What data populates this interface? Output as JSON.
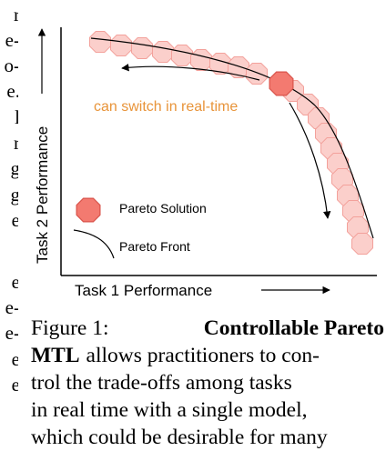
{
  "left_column_fragments": [
    "r",
    "e-",
    "o-",
    "e.",
    "l",
    "r",
    "g",
    "g",
    "e",
    "e",
    "e-",
    "e-",
    "e",
    "e"
  ],
  "figure": {
    "annotation": "can switch in real-time",
    "legend": {
      "solution_label": "Pareto Solution",
      "front_label": "Pareto Front"
    },
    "xlabel": "Task 1 Performance",
    "ylabel": "Task 2 Performance",
    "colors": {
      "solution_fill": "#f37a70",
      "solution_stroke": "#d9534a",
      "front_fill": "#fbcfcb",
      "front_stroke": "#f3a19b",
      "annotation": "#e8943a"
    }
  },
  "caption": {
    "figure_label": "Figure 1:",
    "title_part1": "Controllable Pareto",
    "title_part2": "MTL",
    "line2_rest": "allows practitioners to con-",
    "line3": "trol the trade-offs among tasks",
    "line4": "in real time with a single model,",
    "line5": "which could be desirable for many"
  }
}
